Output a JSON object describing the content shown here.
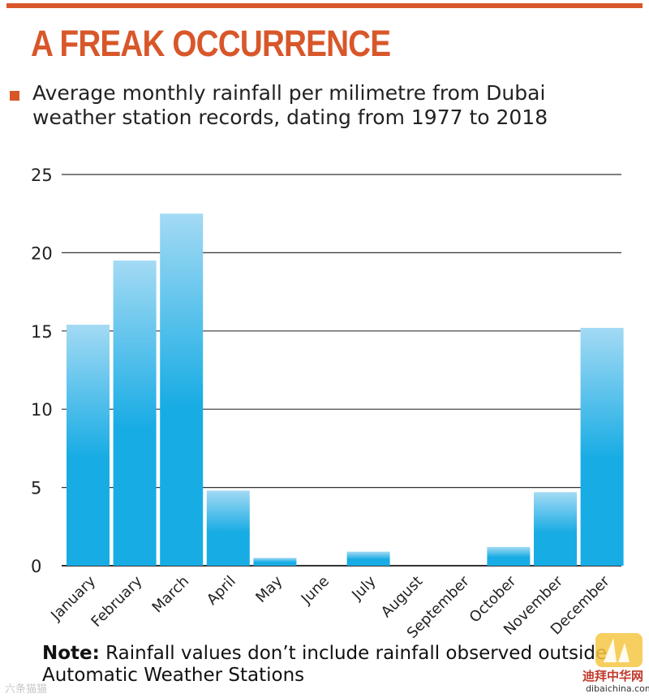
{
  "header": {
    "title": "A FREAK OCCURRENCE",
    "subtitle": "Average monthly rainfall per milimetre from Dubai weather station records, dating from 1977 to 2018"
  },
  "colors": {
    "accent": "#d8572a",
    "bar_top": "#a3daf4",
    "bar_bottom": "#18ace4",
    "gridline": "#333333"
  },
  "chart_data": {
    "type": "bar",
    "title": "A FREAK OCCURRENCE",
    "subtitle": "Average monthly rainfall per milimetre from Dubai weather station records, dating from 1977 to 2018",
    "xlabel": "",
    "ylabel": "",
    "ylim": [
      0,
      25
    ],
    "yticks": [
      0,
      5,
      10,
      15,
      20,
      25
    ],
    "ytick_labels": [
      "0",
      "5",
      "10",
      "15",
      "20",
      "25"
    ],
    "categories": [
      "January",
      "February",
      "March",
      "April",
      "May",
      "June",
      "July",
      "August",
      "September",
      "October",
      "November",
      "December"
    ],
    "values": [
      15.4,
      19.5,
      22.5,
      4.8,
      0.5,
      0,
      0.9,
      0,
      0,
      1.2,
      4.7,
      15.2
    ],
    "grid": true
  },
  "note": {
    "label": "Note:",
    "text": " Rainfall values don’t include rainfall observed outside Automatic Weather Stations"
  },
  "watermark": {
    "left_text": "六条猫猫",
    "logo_cn": "迪拜中华网",
    "logo_en": "dibaichina.com"
  }
}
